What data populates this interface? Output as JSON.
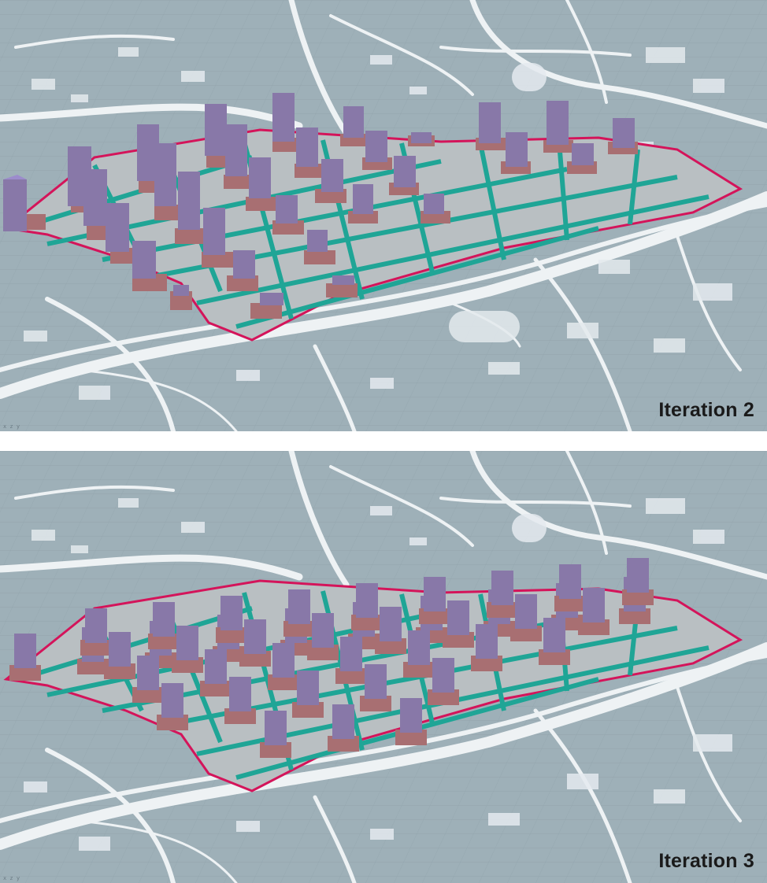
{
  "panels": [
    {
      "label": "Iteration 2",
      "axis_hint": "x z y"
    },
    {
      "label": "Iteration 3",
      "axis_hint": "x z y"
    }
  ],
  "colors": {
    "background": "#9eb0b8",
    "roads": "#eef2f4",
    "boundary": "#d4145a",
    "podium": "#a86f72",
    "tower": "#8878a8",
    "tower_top": "#9c8ccc",
    "green_bars": "#1fa596",
    "site_ground": "#b9bfc2"
  },
  "icons": {
    "axis_gizmo": "xyz-axis-icon"
  }
}
